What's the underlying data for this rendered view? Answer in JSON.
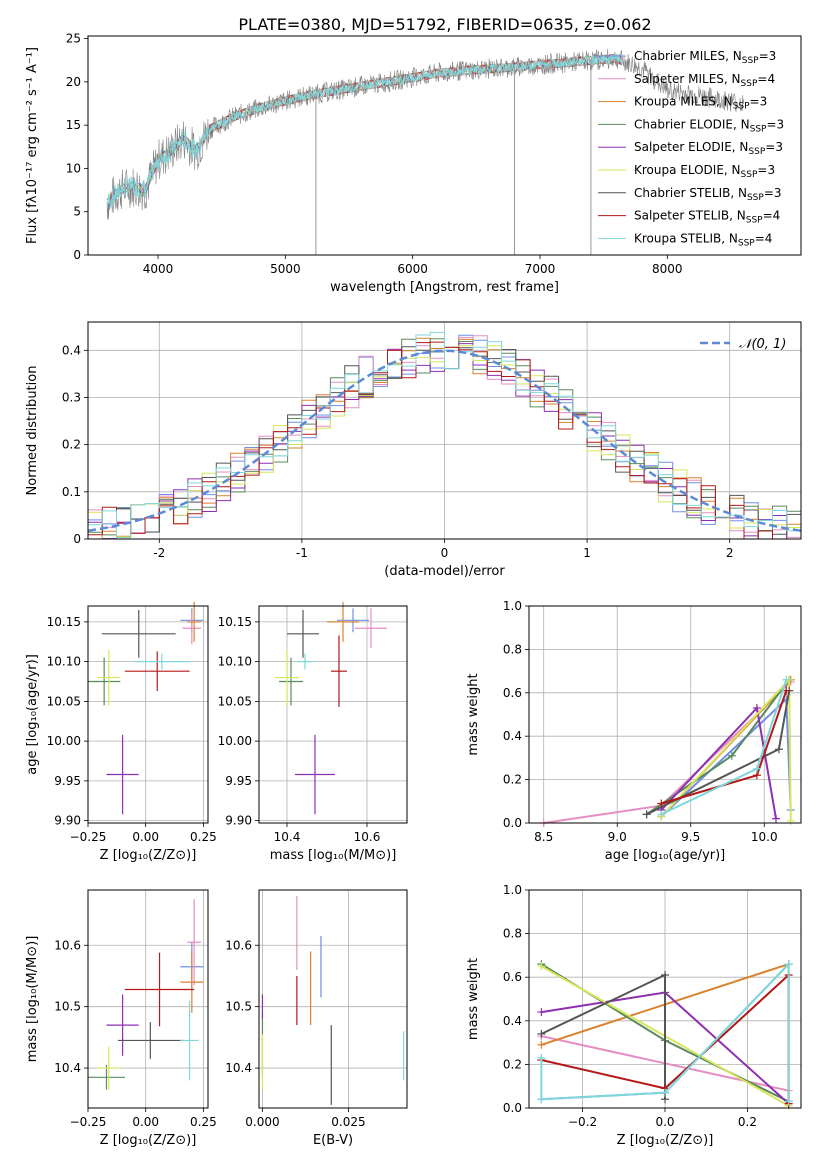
{
  "figure_title": "PLATE=0380, MJD=51792, FIBERID=0635, z=0.062",
  "series": [
    {
      "name": "Chabrier MILES, N",
      "sub": "SSP",
      "suffix": "=3",
      "color": "#6f8fe8"
    },
    {
      "name": "Salpeter MILES, N",
      "sub": "SSP",
      "suffix": "=4",
      "color": "#e68ec4"
    },
    {
      "name": "Kroupa MILES, N",
      "sub": "SSP",
      "suffix": "=3",
      "color": "#d9812e"
    },
    {
      "name": "Chabrier ELODIE, N",
      "sub": "SSP",
      "suffix": "=3",
      "color": "#5a8a5e"
    },
    {
      "name": "Salpeter ELODIE, N",
      "sub": "SSP",
      "suffix": "=3",
      "color": "#8e2fb0"
    },
    {
      "name": "Kroupa ELODIE, N",
      "sub": "SSP",
      "suffix": "=3",
      "color": "#d6e65a"
    },
    {
      "name": "Chabrier STELIB, N",
      "sub": "SSP",
      "suffix": "=3",
      "color": "#555555"
    },
    {
      "name": "Salpeter STELIB, N",
      "sub": "SSP",
      "suffix": "=4",
      "color": "#b51818"
    },
    {
      "name": "Kroupa STELIB, N",
      "sub": "SSP",
      "suffix": "=4",
      "color": "#7fd7dc"
    }
  ],
  "chart_data": [
    {
      "id": "spectrum",
      "type": "line",
      "xlabel": "wavelength [Angstrom, rest frame]",
      "ylabel": "Flux [fλ10⁻¹⁷ erg cm⁻² s⁻¹ A⁻¹]",
      "xlim": [
        3450,
        9050
      ],
      "ylim": [
        0,
        25.3
      ],
      "xticks": [
        4000,
        5000,
        6000,
        7000,
        8000
      ],
      "yticks": [
        0,
        5,
        10,
        15,
        20,
        25
      ],
      "data_color": "#808080",
      "model_color": "#7fd7dc",
      "anchors": [
        [
          3600,
          6
        ],
        [
          3700,
          7.5
        ],
        [
          3800,
          8
        ],
        [
          3900,
          7.5
        ],
        [
          4000,
          11
        ],
        [
          4100,
          12
        ],
        [
          4200,
          13.5
        ],
        [
          4300,
          12
        ],
        [
          4400,
          14.5
        ],
        [
          4600,
          16
        ],
        [
          4800,
          17
        ],
        [
          5000,
          17.8
        ],
        [
          5200,
          18.5
        ],
        [
          5400,
          19
        ],
        [
          5600,
          19.5
        ],
        [
          5800,
          20
        ],
        [
          6000,
          20.5
        ],
        [
          6200,
          21
        ],
        [
          6400,
          21.3
        ],
        [
          6600,
          21.5
        ],
        [
          6800,
          21.7
        ],
        [
          7000,
          22
        ],
        [
          7200,
          22.2
        ],
        [
          7400,
          22.5
        ],
        [
          7600,
          22.7
        ],
        [
          7800,
          21.5
        ],
        [
          8000,
          19
        ],
        [
          8200,
          18.5
        ],
        [
          8400,
          18
        ],
        [
          8600,
          17.5
        ]
      ],
      "spikes": [
        [
          5240,
          0
        ],
        [
          6800,
          0
        ],
        [
          7400,
          0
        ]
      ]
    },
    {
      "id": "residuals",
      "type": "histogram",
      "xlabel": "(data-model)/error",
      "ylabel": "Normed distribution",
      "xlim": [
        -2.5,
        2.5
      ],
      "ylim": [
        0,
        0.46
      ],
      "xticks": [
        -2,
        -1,
        0,
        1,
        2
      ],
      "yticks": [
        0,
        0.1,
        0.2,
        0.3,
        0.4
      ],
      "bin_width": 0.1,
      "bin_start": -2.5,
      "reference": {
        "label": "𝒩(0, 1)",
        "type": "gaussian",
        "mean": 0,
        "sigma": 1,
        "color": "#5b8ad6"
      }
    },
    {
      "id": "age-vs-Z",
      "type": "scatter",
      "xlabel": "Z [log₁₀(Z/Z⊙)]",
      "ylabel": "age [log₁₀(age/yr)]",
      "xlim": [
        -0.25,
        0.27
      ],
      "ylim": [
        9.897,
        10.17
      ],
      "xticks": [
        -0.25,
        0.0,
        0.25
      ],
      "xticklabels": [
        "−0.25",
        "0.00",
        "0.25"
      ],
      "yticks": [
        9.9,
        9.95,
        10.0,
        10.05,
        10.1,
        10.15
      ],
      "yticklabels": [
        "9.90",
        "9.95",
        "10.00",
        "10.05",
        "10.10",
        "10.15"
      ],
      "points": [
        {
          "x": 0.2,
          "y": 10.152,
          "xerr": 0.05,
          "yerr": 0.015,
          "series": 0
        },
        {
          "x": 0.2,
          "y": 10.142,
          "xerr": 0.04,
          "yerr": 0.02,
          "series": 1
        },
        {
          "x": 0.21,
          "y": 10.15,
          "xerr": 0.03,
          "yerr": 0.025,
          "series": 2
        },
        {
          "x": -0.18,
          "y": 10.075,
          "xerr": 0.07,
          "yerr": 0.03,
          "series": 3
        },
        {
          "x": -0.1,
          "y": 9.958,
          "xerr": 0.07,
          "yerr": 0.05,
          "series": 4
        },
        {
          "x": -0.16,
          "y": 10.08,
          "xerr": 0.05,
          "yerr": 0.035,
          "series": 5
        },
        {
          "x": -0.03,
          "y": 10.135,
          "xerr": 0.16,
          "yerr": 0.03,
          "series": 6
        },
        {
          "x": 0.05,
          "y": 10.088,
          "xerr": 0.14,
          "yerr": 0.025,
          "series": 7
        },
        {
          "x": 0.07,
          "y": 10.1,
          "xerr": 0.12,
          "yerr": 0.01,
          "series": 8
        }
      ]
    },
    {
      "id": "age-vs-mass",
      "type": "scatter",
      "xlabel": "mass [log₁₀(M/M⊙)]",
      "ylabel": "",
      "xlim": [
        10.33,
        10.7
      ],
      "ylim": [
        9.897,
        10.17
      ],
      "xticks": [
        10.4,
        10.6
      ],
      "xticklabels": [
        "10.4",
        "10.6"
      ],
      "yticks": [
        9.9,
        9.95,
        10.0,
        10.05,
        10.1,
        10.15
      ],
      "yticklabels": [
        "9.90",
        "9.95",
        "10.00",
        "10.05",
        "10.10",
        "10.15"
      ],
      "points": [
        {
          "x": 10.565,
          "y": 10.152,
          "xerr": 0.04,
          "yerr": 0.015,
          "series": 0
        },
        {
          "x": 10.61,
          "y": 10.142,
          "xerr": 0.04,
          "yerr": 0.025,
          "series": 1
        },
        {
          "x": 10.54,
          "y": 10.15,
          "xerr": 0.04,
          "yerr": 0.025,
          "series": 2
        },
        {
          "x": 10.41,
          "y": 10.075,
          "xerr": 0.03,
          "yerr": 0.03,
          "series": 3
        },
        {
          "x": 10.47,
          "y": 9.958,
          "xerr": 0.05,
          "yerr": 0.05,
          "series": 4
        },
        {
          "x": 10.4,
          "y": 10.08,
          "xerr": 0.03,
          "yerr": 0.035,
          "series": 5
        },
        {
          "x": 10.44,
          "y": 10.135,
          "xerr": 0.04,
          "yerr": 0.03,
          "series": 6
        },
        {
          "x": 10.53,
          "y": 10.088,
          "xerr": 0.02,
          "yerr": 0.045,
          "series": 7
        },
        {
          "x": 10.445,
          "y": 10.1,
          "xerr": 0.02,
          "yerr": 0.01,
          "series": 8
        }
      ]
    },
    {
      "id": "weight-vs-age",
      "type": "line",
      "xlabel": "age [log₁₀(age/yr)]",
      "ylabel": "mass weight",
      "xlim": [
        8.4,
        10.25
      ],
      "ylim": [
        0,
        1.0
      ],
      "xticks": [
        8.5,
        9.0,
        9.5,
        10.0
      ],
      "xticklabels": [
        "8.5",
        "9.0",
        "9.5",
        "10.0"
      ],
      "yticks": [
        0,
        0.2,
        0.4,
        0.6,
        0.8,
        1.0
      ],
      "yticklabels": [
        "0.0",
        "0.2",
        "0.4",
        "0.6",
        "0.8",
        "1.0"
      ],
      "lines": [
        {
          "series": 0,
          "points": [
            [
              9.3,
              0.03
            ],
            [
              10.15,
              0.57
            ],
            [
              10.18,
              0.06
            ]
          ]
        },
        {
          "series": 1,
          "points": [
            [
              8.5,
              0.0
            ],
            [
              9.3,
              0.08
            ],
            [
              10.18,
              0.65
            ]
          ]
        },
        {
          "series": 2,
          "points": [
            [
              9.3,
              0.03
            ],
            [
              10.18,
              0.66
            ]
          ]
        },
        {
          "series": 3,
          "points": [
            [
              9.2,
              0.04
            ],
            [
              9.78,
              0.31
            ],
            [
              10.17,
              0.66
            ]
          ]
        },
        {
          "series": 4,
          "points": [
            [
              9.3,
              0.06
            ],
            [
              9.95,
              0.53
            ],
            [
              10.08,
              0.02
            ]
          ]
        },
        {
          "series": 5,
          "points": [
            [
              9.3,
              0.03
            ],
            [
              10.17,
              0.66
            ],
            [
              10.18,
              0.01
            ]
          ]
        },
        {
          "series": 6,
          "points": [
            [
              9.2,
              0.04
            ],
            [
              10.1,
              0.34
            ],
            [
              10.17,
              0.61
            ]
          ]
        },
        {
          "series": 7,
          "points": [
            [
              9.3,
              0.09
            ],
            [
              9.95,
              0.22
            ],
            [
              10.15,
              0.61
            ]
          ]
        },
        {
          "series": 8,
          "points": [
            [
              9.3,
              0.04
            ],
            [
              9.95,
              0.25
            ],
            [
              10.15,
              0.66
            ]
          ]
        }
      ]
    },
    {
      "id": "mass-vs-Z",
      "type": "scatter",
      "xlabel": "Z [log₁₀(Z/Z⊙)]",
      "ylabel": "mass [log₁₀(M/M⊙)]",
      "xlim": [
        -0.25,
        0.27
      ],
      "ylim": [
        10.335,
        10.69
      ],
      "xticks": [
        -0.25,
        0.0,
        0.25
      ],
      "xticklabels": [
        "−0.25",
        "0.00",
        "0.25"
      ],
      "yticks": [
        10.4,
        10.5,
        10.6
      ],
      "yticklabels": [
        "10.4",
        "10.5",
        "10.6"
      ],
      "points": [
        {
          "x": 0.2,
          "y": 10.565,
          "xerr": 0.05,
          "yerr": 0.04,
          "series": 0
        },
        {
          "x": 0.21,
          "y": 10.605,
          "xerr": 0.03,
          "yerr": 0.07,
          "series": 1
        },
        {
          "x": 0.2,
          "y": 10.54,
          "xerr": 0.05,
          "yerr": 0.05,
          "series": 2
        },
        {
          "x": -0.17,
          "y": 10.385,
          "xerr": 0.08,
          "yerr": 0.02,
          "series": 3
        },
        {
          "x": -0.1,
          "y": 10.47,
          "xerr": 0.07,
          "yerr": 0.05,
          "series": 4
        },
        {
          "x": -0.16,
          "y": 10.4,
          "xerr": 0.05,
          "yerr": 0.035,
          "series": 5
        },
        {
          "x": 0.02,
          "y": 10.445,
          "xerr": 0.14,
          "yerr": 0.03,
          "series": 6
        },
        {
          "x": 0.06,
          "y": 10.528,
          "xerr": 0.15,
          "yerr": 0.06,
          "series": 7
        },
        {
          "x": 0.19,
          "y": 10.445,
          "xerr": 0.04,
          "yerr": 0.065,
          "series": 8
        }
      ]
    },
    {
      "id": "mass-vs-EBV",
      "type": "scatter",
      "xlabel": "E(B-V)",
      "ylabel": "",
      "xlim": [
        -0.001,
        0.042
      ],
      "ylim": [
        10.335,
        10.69
      ],
      "xticks": [
        0.0,
        0.025
      ],
      "xticklabels": [
        "0.000",
        "0.025"
      ],
      "yticks": [
        10.4,
        10.5,
        10.6
      ],
      "yticklabels": [
        "10.4",
        "10.5",
        "10.6"
      ],
      "points": [
        {
          "x": 0.017,
          "y": 10.565,
          "xerr": 0.0,
          "yerr": 0.05,
          "series": 0
        },
        {
          "x": 0.01,
          "y": 10.62,
          "xerr": 0.0,
          "yerr": 0.06,
          "series": 1
        },
        {
          "x": 0.014,
          "y": 10.53,
          "xerr": 0.0,
          "yerr": 0.06,
          "series": 2
        },
        {
          "x": 0.0,
          "y": 10.44,
          "xerr": 0.0,
          "yerr": 0.05,
          "series": 3
        },
        {
          "x": 0.0,
          "y": 10.5,
          "xerr": 0.0,
          "yerr": 0.02,
          "series": 4
        },
        {
          "x": 0.0,
          "y": 10.41,
          "xerr": 0.0,
          "yerr": 0.045,
          "series": 5
        },
        {
          "x": 0.02,
          "y": 10.405,
          "xerr": 0.0,
          "yerr": 0.065,
          "series": 6
        },
        {
          "x": 0.01,
          "y": 10.51,
          "xerr": 0.0,
          "yerr": 0.04,
          "series": 7
        },
        {
          "x": 0.041,
          "y": 10.42,
          "xerr": 0.0,
          "yerr": 0.04,
          "series": 8
        }
      ]
    },
    {
      "id": "weight-vs-Z",
      "type": "line",
      "xlabel": "Z [log₁₀(Z/Z⊙)]",
      "ylabel": "mass weight",
      "xlim": [
        -0.33,
        0.33
      ],
      "ylim": [
        0,
        1.0
      ],
      "xticks": [
        -0.2,
        0.0,
        0.2
      ],
      "xticklabels": [
        "−0.2",
        "0.0",
        "0.2"
      ],
      "yticks": [
        0,
        0.2,
        0.4,
        0.6,
        0.8,
        1.0
      ],
      "yticklabels": [
        "0.0",
        "0.2",
        "0.4",
        "0.6",
        "0.8",
        "1.0"
      ],
      "lines": [
        {
          "series": 0,
          "points": [
            [
              -0.3,
              0.04
            ],
            [
              0.0,
              0.07
            ],
            [
              0.3,
              0.66
            ]
          ]
        },
        {
          "series": 1,
          "points": [
            [
              -0.3,
              0.33
            ],
            [
              0.3,
              0.08
            ]
          ]
        },
        {
          "series": 2,
          "points": [
            [
              -0.3,
              0.29
            ],
            [
              0.3,
              0.66
            ],
            [
              0.3,
              0.03
            ]
          ]
        },
        {
          "series": 3,
          "points": [
            [
              -0.3,
              0.66
            ],
            [
              0.0,
              0.31
            ],
            [
              0.3,
              0.03
            ]
          ]
        },
        {
          "series": 4,
          "points": [
            [
              -0.3,
              0.44
            ],
            [
              0.0,
              0.53
            ],
            [
              0.3,
              0.02
            ]
          ]
        },
        {
          "series": 5,
          "points": [
            [
              -0.3,
              0.65
            ],
            [
              0.3,
              0.01
            ]
          ]
        },
        {
          "series": 6,
          "points": [
            [
              -0.3,
              0.34
            ],
            [
              0.0,
              0.61
            ],
            [
              0.0,
              0.04
            ]
          ]
        },
        {
          "series": 7,
          "points": [
            [
              -0.3,
              0.22
            ],
            [
              0.0,
              0.09
            ],
            [
              0.3,
              0.61
            ],
            [
              0.3,
              0.02
            ]
          ]
        },
        {
          "series": 8,
          "points": [
            [
              -0.3,
              0.23
            ],
            [
              -0.3,
              0.04
            ],
            [
              0.0,
              0.07
            ],
            [
              0.3,
              0.66
            ],
            [
              0.3,
              0.03
            ]
          ]
        }
      ]
    }
  ]
}
